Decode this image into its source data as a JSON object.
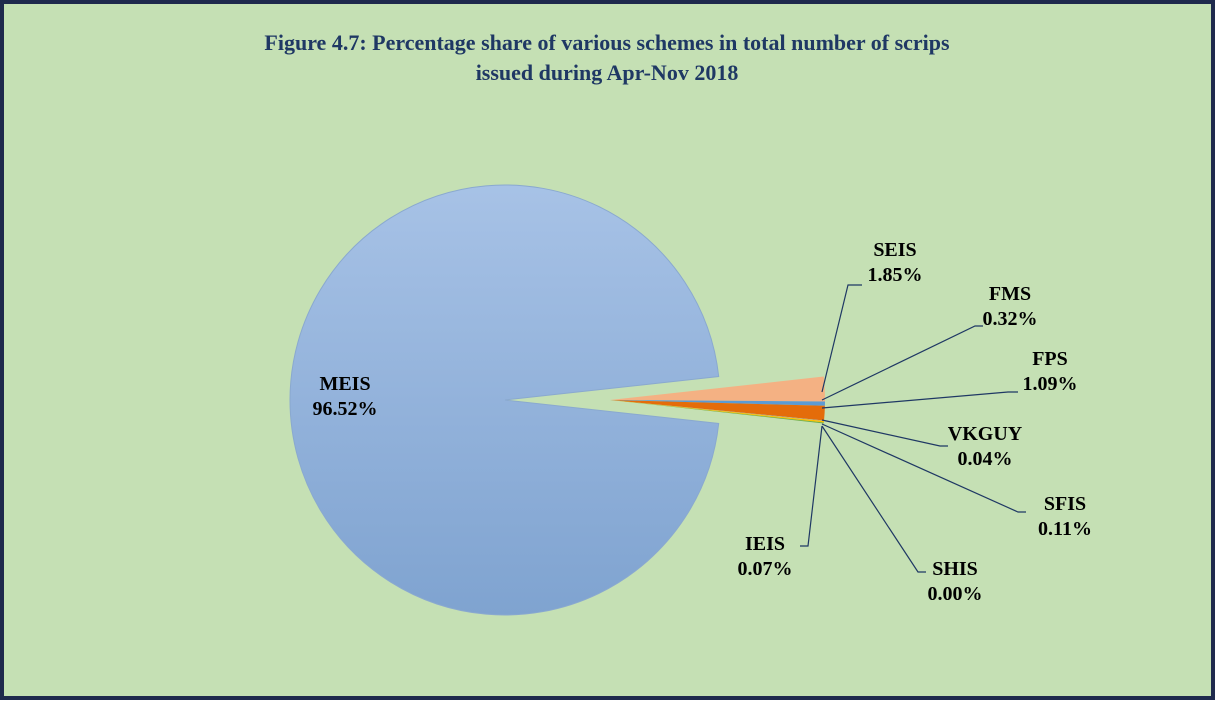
{
  "chart_data": {
    "type": "pie",
    "title": "Figure 4.7: Percentage share of various schemes in total number of scrips",
    "subtitle": "issued during Apr-Nov 2018",
    "categories": [
      "MEIS",
      "SEIS",
      "FMS",
      "FPS",
      "VKGUY",
      "SFIS",
      "SHIS",
      "IEIS"
    ],
    "values": [
      96.52,
      1.85,
      0.32,
      1.09,
      0.04,
      0.11,
      0.0,
      0.07
    ],
    "value_labels": [
      "96.52%",
      "1.85%",
      "0.32%",
      "1.09%",
      "0.04%",
      "0.11%",
      "0.00%",
      "0.07%"
    ],
    "colors": [
      "#95b3d7",
      "#f4b183",
      "#5b9bd5",
      "#e46c0a",
      "#a5a5a5",
      "#ffc000",
      "#4472c4",
      "#70ad47"
    ]
  }
}
